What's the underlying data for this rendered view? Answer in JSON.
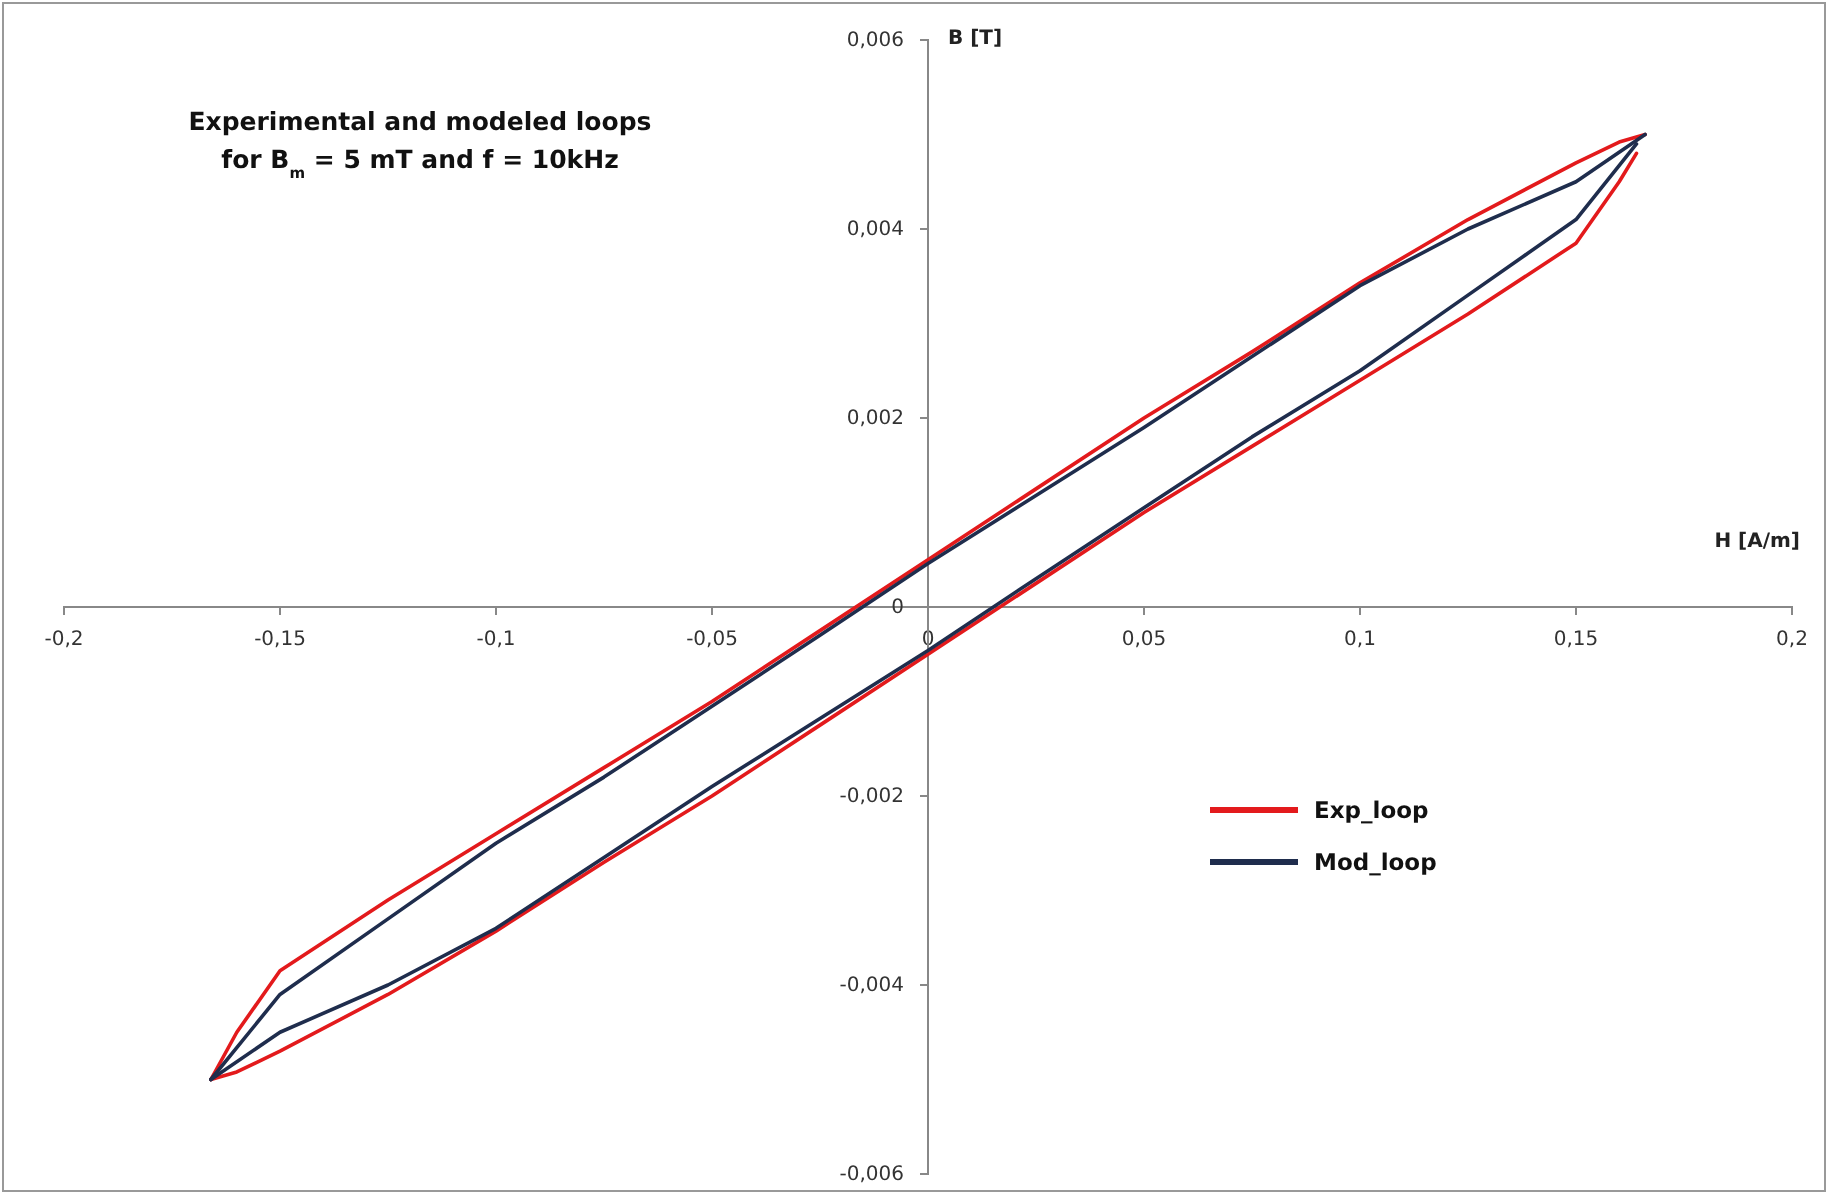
{
  "chart_data": {
    "type": "line",
    "title": "Experimental and modeled loops\nfor B$_{m}$ = 5 mT and f = 10kHz",
    "xlabel": "H [A/m]",
    "ylabel": "B [T]",
    "xlim": [
      -0.2,
      0.2
    ],
    "ylim": [
      -0.006,
      0.006
    ],
    "xticks": [
      {
        "value": -0.2,
        "label": "-0,2"
      },
      {
        "value": -0.15,
        "label": "-0,15"
      },
      {
        "value": -0.1,
        "label": "-0,1"
      },
      {
        "value": -0.05,
        "label": "-0,05"
      },
      0,
      {
        "value": 0.05,
        "label": "0,05"
      },
      {
        "value": 0.1,
        "label": "0,1"
      },
      {
        "value": 0.15,
        "label": "0,15"
      },
      {
        "value": 0.2,
        "label": "0,2"
      }
    ],
    "yticks": [
      {
        "value": -0.006,
        "label": "-0,006"
      },
      {
        "value": -0.004,
        "label": "-0,004"
      },
      {
        "value": -0.002,
        "label": "-0,002"
      },
      0,
      {
        "value": 0.002,
        "label": "0,002"
      },
      {
        "value": 0.004,
        "label": "0,004"
      },
      {
        "value": 0.006,
        "label": "0,006"
      }
    ],
    "legend": "right",
    "grid": false,
    "marker": "none",
    "line_style": "solid",
    "series": [
      {
        "name": "Exp_loop",
        "color": "#e31a1c",
        "x": [
          -0.166,
          -0.16,
          -0.15,
          -0.125,
          -0.1,
          -0.075,
          -0.05,
          -0.025,
          0,
          0.025,
          0.05,
          0.075,
          0.1,
          0.125,
          0.15,
          0.16,
          0.166
        ],
        "values": [
          -0.005,
          -0.0045,
          -0.00385,
          -0.0031,
          -0.0024,
          -0.0017,
          -0.001,
          -0.00025,
          0.0005,
          0.00125,
          0.002,
          0.0027,
          0.00343,
          0.0041,
          0.0047,
          0.00492,
          0.005
        ]
      },
      {
        "color": "#e31a1c",
        "x": [
          -0.166,
          -0.16,
          -0.15,
          -0.125,
          -0.1,
          -0.075,
          -0.05,
          -0.025,
          0,
          0.025,
          0.05,
          0.075,
          0.1,
          0.125,
          0.15,
          0.16,
          0.164
        ],
        "values": [
          -0.005,
          -0.00492,
          -0.0047,
          -0.0041,
          -0.00343,
          -0.0027,
          -0.002,
          -0.00125,
          -0.0005,
          0.00025,
          0.001,
          0.0017,
          0.0024,
          0.0031,
          0.00385,
          0.0045,
          0.0048
        ]
      },
      {
        "name": "Mod_loop",
        "color": "#1f2d4d",
        "x": [
          -0.166,
          -0.15,
          -0.125,
          -0.1,
          -0.075,
          -0.05,
          -0.025,
          0,
          0.025,
          0.05,
          0.075,
          0.1,
          0.125,
          0.15,
          0.166
        ],
        "values": [
          -0.005,
          -0.0041,
          -0.0033,
          -0.0025,
          -0.0018,
          -0.00105,
          -0.0003,
          0.00046,
          0.00118,
          0.0019,
          0.00265,
          0.0034,
          0.004,
          0.0045,
          0.005
        ]
      },
      {
        "color": "#1f2d4d",
        "x": [
          -0.166,
          -0.15,
          -0.125,
          -0.1,
          -0.075,
          -0.05,
          -0.025,
          0,
          0.025,
          0.05,
          0.075,
          0.1,
          0.125,
          0.15,
          0.164
        ],
        "values": [
          -0.005,
          -0.0045,
          -0.004,
          -0.0034,
          -0.00265,
          -0.0019,
          -0.00118,
          -0.00046,
          0.0003,
          0.00105,
          0.0018,
          0.0025,
          0.0033,
          0.0041,
          0.0049
        ]
      }
    ]
  }
}
